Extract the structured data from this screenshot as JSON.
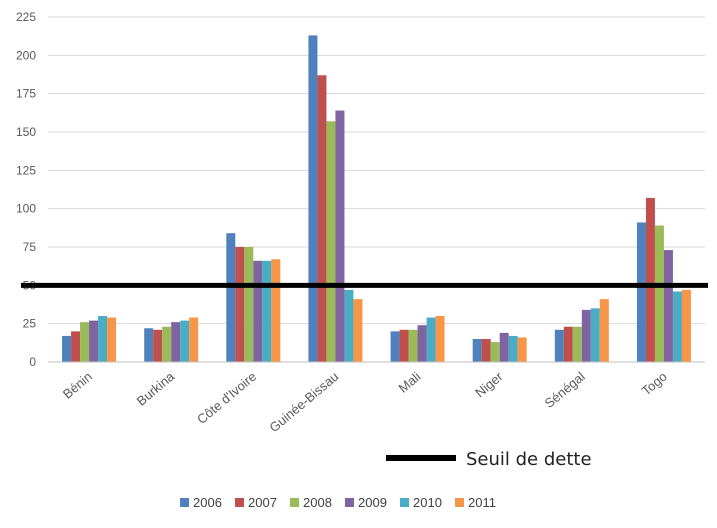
{
  "chart_data": {
    "type": "bar",
    "title": "",
    "xlabel": "",
    "ylabel": "",
    "ylim": [
      0,
      225
    ],
    "yticks": [
      0,
      25,
      50,
      75,
      100,
      125,
      150,
      175,
      200,
      225
    ],
    "grid": true,
    "legend_position": "bottom",
    "categories": [
      "Bénin",
      "Burkina",
      "Côte d'Ivoire",
      "Guinée-Bissau",
      "Mali",
      "Niger",
      "Sénégal",
      "Togo"
    ],
    "series": [
      {
        "name": "2006",
        "color": "#4f81bd",
        "values": [
          17,
          22,
          84,
          213,
          20,
          15,
          21,
          91
        ]
      },
      {
        "name": "2007",
        "color": "#c0504d",
        "values": [
          20,
          21,
          75,
          187,
          21,
          15,
          23,
          107
        ]
      },
      {
        "name": "2008",
        "color": "#9bbb59",
        "values": [
          26,
          23,
          75,
          157,
          21,
          13,
          23,
          89
        ]
      },
      {
        "name": "2009",
        "color": "#8064a2",
        "values": [
          27,
          26,
          66,
          164,
          24,
          19,
          34,
          73
        ]
      },
      {
        "name": "2010",
        "color": "#4bacc6",
        "values": [
          30,
          27,
          66,
          47,
          29,
          17,
          35,
          46
        ]
      },
      {
        "name": "2011",
        "color": "#f79646",
        "values": [
          29,
          29,
          67,
          41,
          30,
          16,
          41,
          47
        ]
      }
    ],
    "threshold": {
      "value": 50,
      "label": "Seuil de dette",
      "color": "#000000"
    }
  }
}
